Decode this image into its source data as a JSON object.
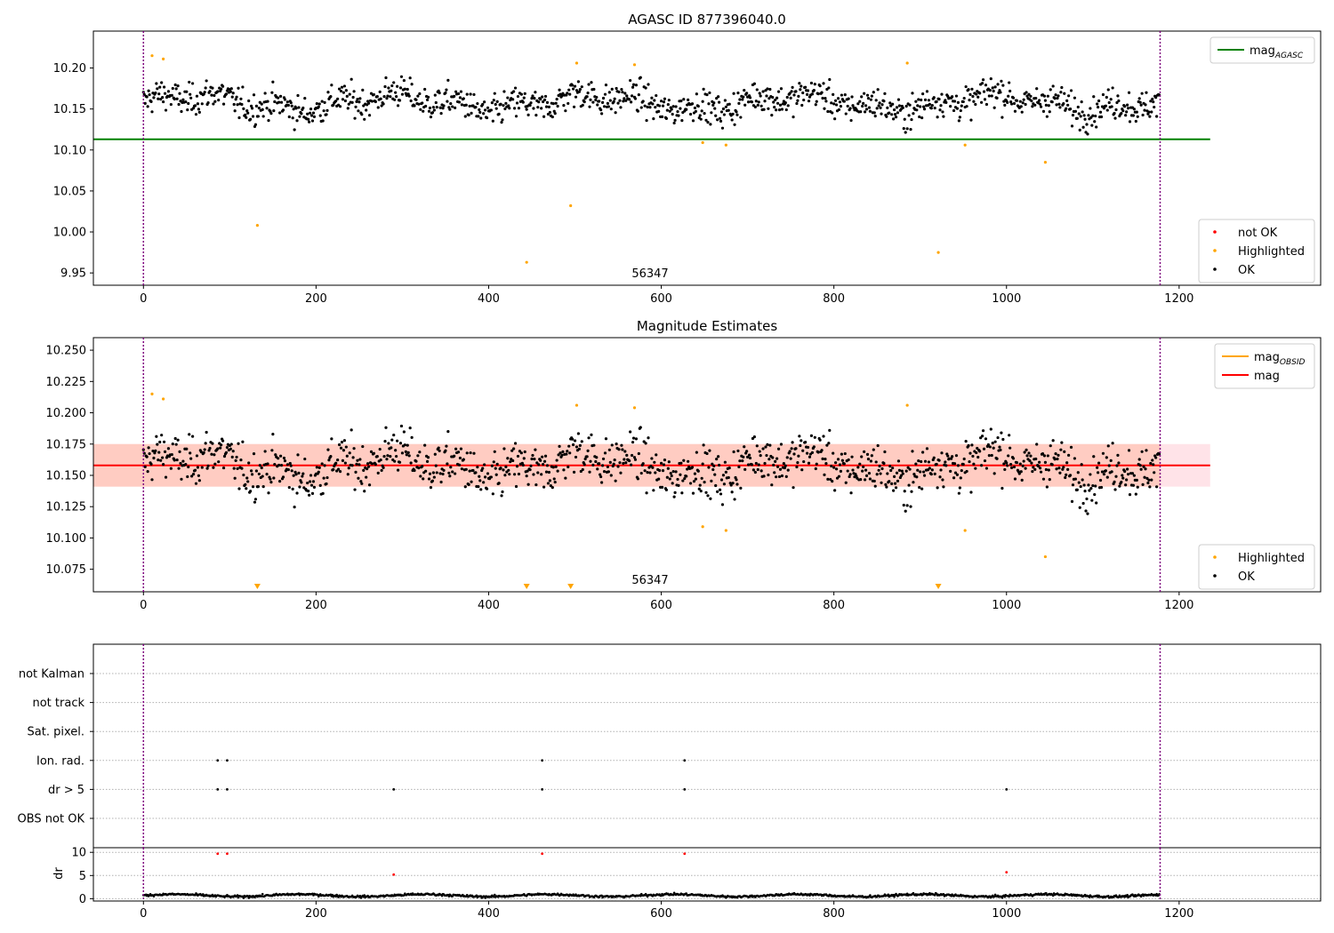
{
  "figure": {
    "background": "#ffffff",
    "x_ticks": [
      0,
      200,
      400,
      600,
      800,
      1000,
      1200
    ],
    "xlim": [
      -58,
      1364
    ],
    "obs_bounds": [
      0,
      1178
    ],
    "colors": {
      "ok": "#000000",
      "highlighted": "#ffa500",
      "not_ok": "#ff0000",
      "mag_agasc": "#008000",
      "mag_obsid": "#ffa500",
      "mag": "#ff0000",
      "band_pink": "#ffc0cb",
      "band_orange": "#ffa07a",
      "bound_line": "#800080",
      "grid": "#b0b0b0"
    }
  },
  "chart_data": [
    {
      "type": "scatter",
      "title": "AGASC ID 877396040.0",
      "annotation": "56347",
      "annotation_x": 587,
      "ylim": [
        9.935,
        10.245
      ],
      "y_ticks": [
        "9.95",
        "10.00",
        "10.05",
        "10.10",
        "10.15",
        "10.20"
      ],
      "y_tick_values": [
        9.95,
        10.0,
        10.05,
        10.1,
        10.15,
        10.2
      ],
      "mag_agasc": 10.113,
      "legend_top": [
        {
          "label": "mag",
          "sub": "AGASC",
          "kind": "line",
          "color": "#008000"
        }
      ],
      "legend_bottom": [
        {
          "label": "not OK",
          "kind": "dot",
          "color": "#ff0000"
        },
        {
          "label": "Highlighted",
          "kind": "dot",
          "color": "#ffa500"
        },
        {
          "label": "OK",
          "kind": "dot",
          "color": "#000000"
        }
      ],
      "series": [
        {
          "name": "OK",
          "base": 10.158,
          "spread": 0.042,
          "n": 1178
        },
        {
          "name": "Highlighted",
          "points": [
            [
              10,
              10.215
            ],
            [
              23,
              10.211
            ],
            [
              132,
              10.008
            ],
            [
              444,
              9.963
            ],
            [
              495,
              10.032
            ],
            [
              502,
              10.206
            ],
            [
              569,
              10.204
            ],
            [
              648,
              10.109
            ],
            [
              675,
              10.106
            ],
            [
              885,
              10.206
            ],
            [
              921,
              9.975
            ],
            [
              952,
              10.106
            ],
            [
              1045,
              10.085
            ]
          ]
        }
      ]
    },
    {
      "type": "scatter",
      "title": "Magnitude Estimates",
      "annotation": "56347",
      "annotation_x": 587,
      "ylim": [
        10.057,
        10.26
      ],
      "y_ticks": [
        "10.075",
        "10.100",
        "10.125",
        "10.150",
        "10.175",
        "10.200",
        "10.225",
        "10.250"
      ],
      "y_tick_values": [
        10.075,
        10.1,
        10.125,
        10.15,
        10.175,
        10.2,
        10.225,
        10.25
      ],
      "mag": 10.158,
      "mag_band": [
        10.141,
        10.175
      ],
      "legend_top": [
        {
          "label": "mag",
          "sub": "OBSID",
          "kind": "line",
          "color": "#ffa500"
        },
        {
          "label": "mag",
          "kind": "line",
          "color": "#ff0000"
        }
      ],
      "legend_bottom": [
        {
          "label": "Highlighted",
          "kind": "dot",
          "color": "#ffa500"
        },
        {
          "label": "OK",
          "kind": "dot",
          "color": "#000000"
        }
      ],
      "below_range_markers": [
        132,
        444,
        495,
        921
      ]
    },
    {
      "type": "scatter",
      "title": "",
      "categories": [
        "not Kalman",
        "not track",
        "Sat. pixel.",
        "Ion. rad.",
        "dr > 5",
        "OBS not OK"
      ],
      "flags": {
        "not Kalman": [],
        "not track": [],
        "Sat. pixel.": [],
        "Ion. rad.": [
          86,
          97,
          462,
          627
        ],
        "dr > 5": [
          86,
          97,
          290,
          462,
          627,
          1000
        ],
        "OBS not OK": []
      }
    },
    {
      "type": "scatter",
      "ylabel": "dr",
      "ylim": [
        -0.5,
        11
      ],
      "y_ticks": [
        "0",
        "5",
        "10"
      ],
      "y_tick_values": [
        0,
        5,
        10
      ],
      "dr_outliers": [
        [
          86,
          9.7
        ],
        [
          97,
          9.7
        ],
        [
          290,
          5.2
        ],
        [
          462,
          9.7
        ],
        [
          627,
          9.7
        ],
        [
          1000,
          5.7
        ]
      ],
      "dr_base": 0.7
    }
  ]
}
